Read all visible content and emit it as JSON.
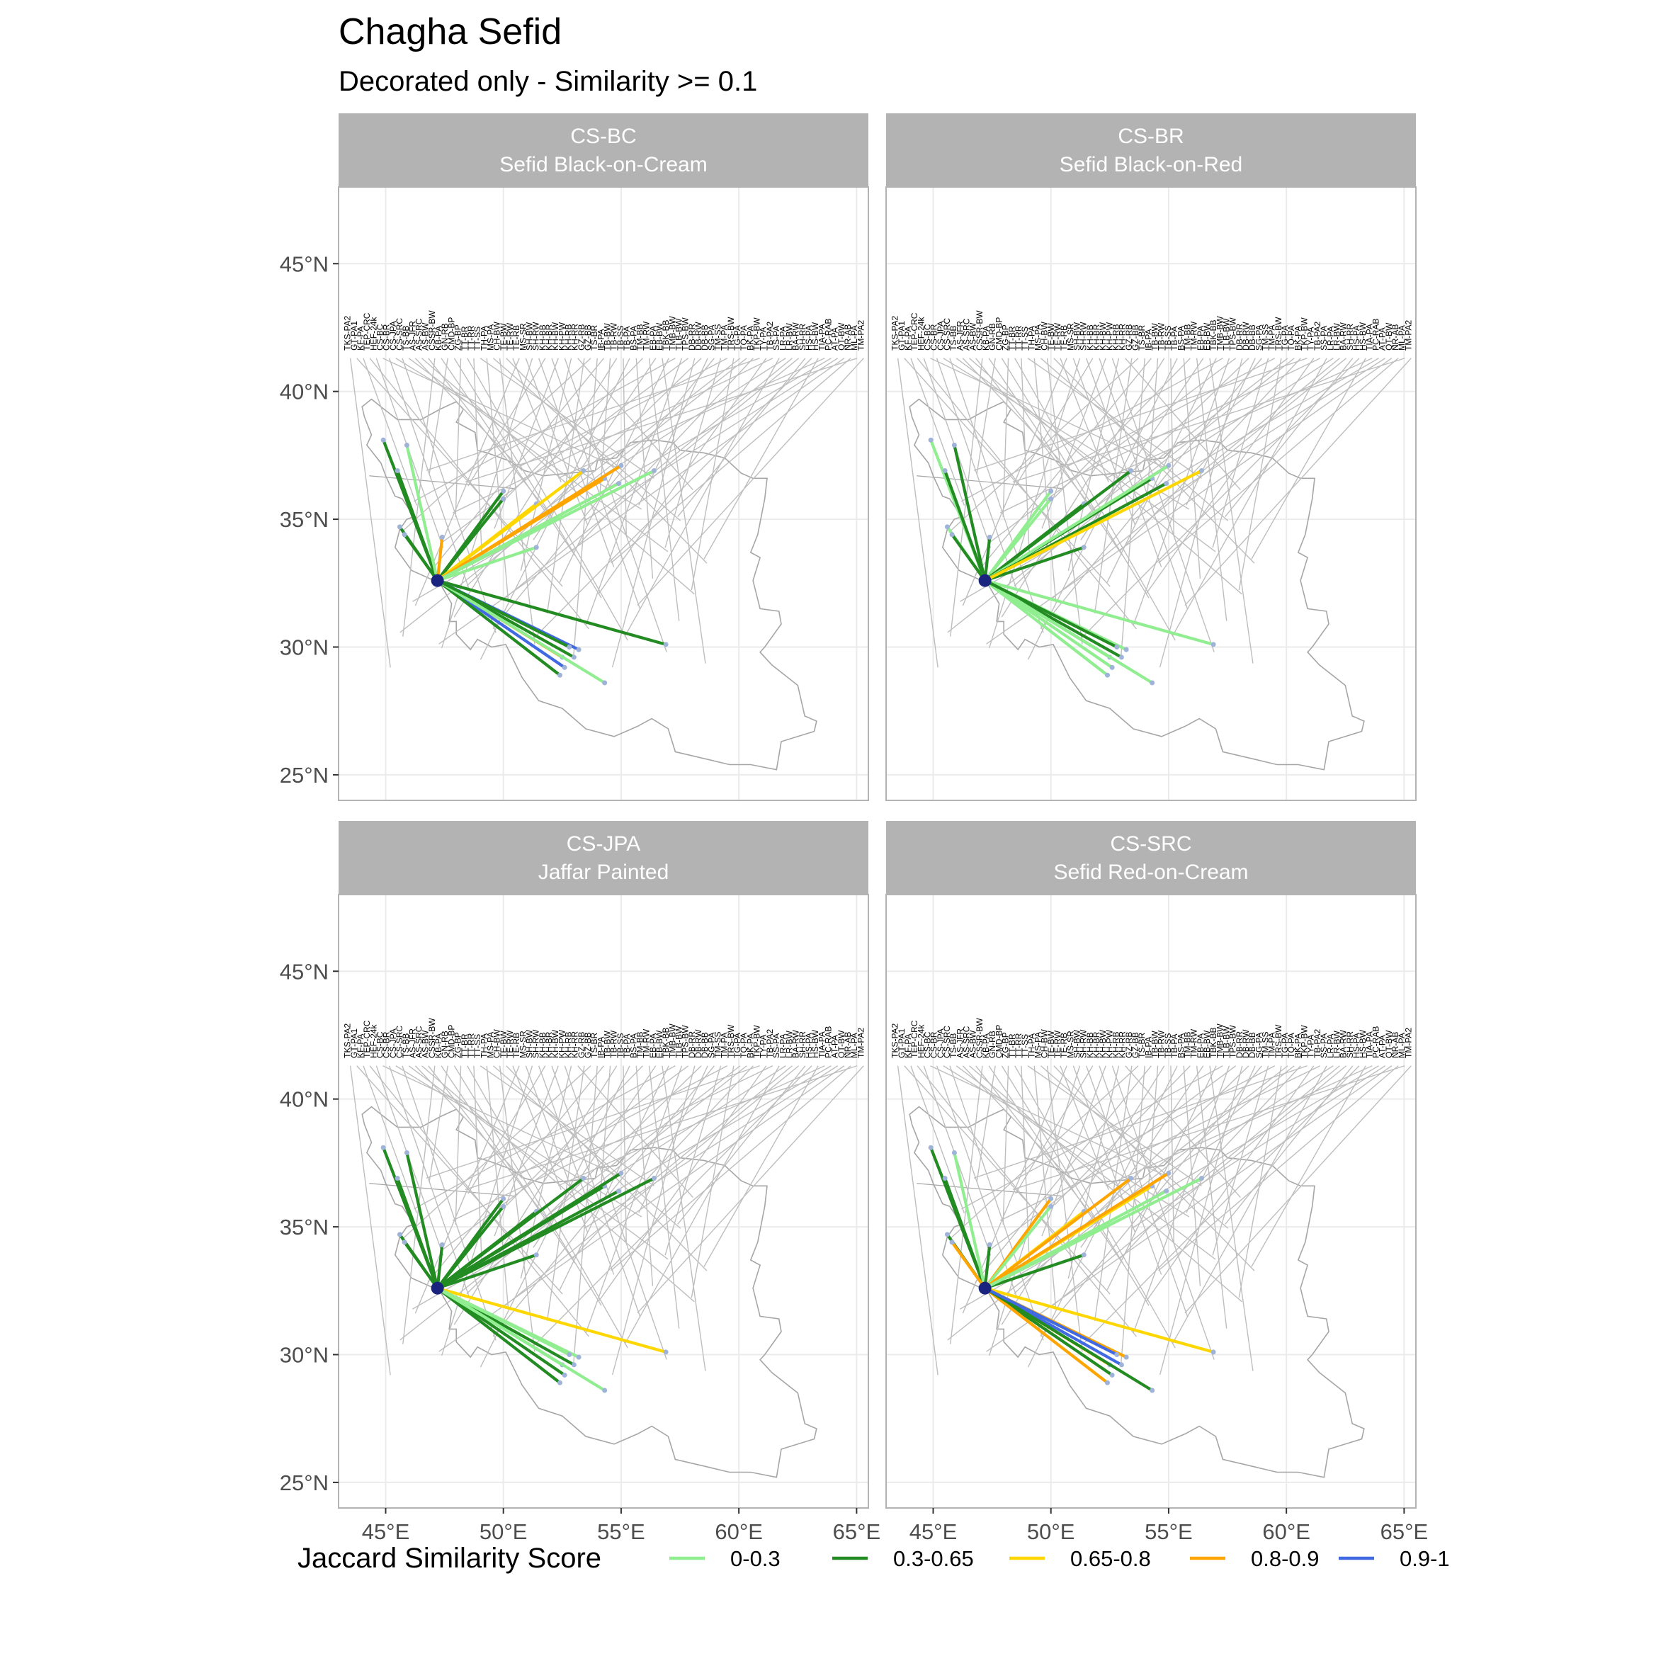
{
  "title": "Chagha Sefid",
  "subtitle": "Decorated only - Similarity >= 0.1",
  "legend": {
    "title": "Jaccard Similarity Score",
    "items": [
      {
        "label": "0-0.3",
        "color": "#90EE90"
      },
      {
        "label": "0.3-0.65",
        "color": "#228B22"
      },
      {
        "label": "0.65-0.8",
        "color": "#FFD700"
      },
      {
        "label": "0.8-0.9",
        "color": "#FFA500"
      },
      {
        "label": "0.9-1",
        "color": "#4169E1"
      }
    ]
  },
  "chart_data": {
    "type": "map",
    "xlim": [
      43,
      65.5
    ],
    "ylim": [
      24,
      48
    ],
    "x_ticks": [
      {
        "value": 45,
        "label": "45°E"
      },
      {
        "value": 50,
        "label": "50°E"
      },
      {
        "value": 55,
        "label": "55°E"
      },
      {
        "value": 60,
        "label": "60°E"
      },
      {
        "value": 65,
        "label": "65°E"
      }
    ],
    "y_ticks": [
      {
        "value": 25,
        "label": "25°N"
      },
      {
        "value": 30,
        "label": "30°N"
      },
      {
        "value": 35,
        "label": "35°N"
      },
      {
        "value": 40,
        "label": "40°N"
      },
      {
        "value": 45,
        "label": "45°N"
      }
    ],
    "origin": {
      "name": "Chagha Sefid",
      "lon": 47.2,
      "lat": 32.6
    },
    "site_labels": [
      "TKS-PA2",
      "GT-PA1",
      "KF-PA",
      "TEP-CRC",
      "HEF-24k",
      "CS-BC",
      "CS-BR",
      "CS-JPA",
      "CS-SRC",
      "TS-BB",
      "AS-JFR",
      "AS-SRC",
      "AS-BW",
      "CSSR-BW",
      "KB-PA",
      "GN-RB",
      "CMD-BP",
      "ZG-BP",
      "TT-BR",
      "TT-RR",
      "TT-SS",
      "TH-PA",
      "MS-PA",
      "CH-BW",
      "TE-BW",
      "TE-RW",
      "TE-RB",
      "MS-SR",
      "SH-BW",
      "SH-RW",
      "KH-BB",
      "KH-BR",
      "KH-BW",
      "KH-PW",
      "KH-RB",
      "KH-RR",
      "GZ-RB",
      "GZ-BB",
      "TS-BR",
      "IB-PA",
      "TB-BW",
      "TB-RW",
      "TB-SS",
      "TB-PA",
      "BS-PA",
      "TM-BB",
      "TM-RW",
      "EB-PA",
      "EB-BW",
      "TBK-BB",
      "TMB-BW",
      "TLB-BW",
      "TPS-BW",
      "DB-RR",
      "DB-RW",
      "DB-BB",
      "SG-PA",
      "TM-SS",
      "TM-PA",
      "TRS-BW",
      "TG-PA",
      "TQ-PA",
      "BK-PA",
      "TKP-BW",
      "TY-PA",
      "TB-PA2",
      "SS-PA",
      "LR-PA",
      "LR-BW",
      "BA-RW",
      "SH-RR",
      "HS-PA",
      "HS-BW",
      "TIA-PA",
      "PC-RAB",
      "AT-PA",
      "QT-BW",
      "NR-AB",
      "ML-PA",
      "TM-PA2"
    ],
    "panels": [
      {
        "code": "CS-BC",
        "name": "Sefid Black-on-Cream",
        "links": [
          {
            "lon": 44.9,
            "lat": 38.1,
            "band": "0.3-0.65"
          },
          {
            "lon": 45.5,
            "lat": 36.9,
            "band": "0.3-0.65"
          },
          {
            "lon": 45.9,
            "lat": 37.9,
            "band": "0-0.3"
          },
          {
            "lon": 45.6,
            "lat": 34.7,
            "band": "0.3-0.65"
          },
          {
            "lon": 45.8,
            "lat": 34.4,
            "band": "0.3-0.65"
          },
          {
            "lon": 47.4,
            "lat": 34.3,
            "band": "0.8-0.9"
          },
          {
            "lon": 50.0,
            "lat": 36.1,
            "band": "0.3-0.65"
          },
          {
            "lon": 50.0,
            "lat": 35.8,
            "band": "0.3-0.65"
          },
          {
            "lon": 51.4,
            "lat": 35.6,
            "band": "0.65-0.8"
          },
          {
            "lon": 51.4,
            "lat": 33.9,
            "band": "0-0.3"
          },
          {
            "lon": 53.4,
            "lat": 36.9,
            "band": "0.65-0.8"
          },
          {
            "lon": 54.3,
            "lat": 36.6,
            "band": "0.8-0.9"
          },
          {
            "lon": 55.0,
            "lat": 37.1,
            "band": "0.8-0.9"
          },
          {
            "lon": 54.9,
            "lat": 36.4,
            "band": "0-0.3"
          },
          {
            "lon": 56.4,
            "lat": 36.9,
            "band": "0-0.3"
          },
          {
            "lon": 56.9,
            "lat": 30.1,
            "band": "0.3-0.65"
          },
          {
            "lon": 53.2,
            "lat": 29.9,
            "band": "0.9-1"
          },
          {
            "lon": 53.0,
            "lat": 29.6,
            "band": "0.3-0.65"
          },
          {
            "lon": 52.5,
            "lat": 29.6,
            "band": "0.8-0.9"
          },
          {
            "lon": 52.6,
            "lat": 29.2,
            "band": "0.9-1"
          },
          {
            "lon": 52.4,
            "lat": 28.9,
            "band": "0.3-0.65"
          },
          {
            "lon": 54.3,
            "lat": 28.6,
            "band": "0-0.3"
          },
          {
            "lon": 52.8,
            "lat": 30.0,
            "band": "0.3-0.65"
          }
        ]
      },
      {
        "code": "CS-BR",
        "name": "Sefid Black-on-Red",
        "links": [
          {
            "lon": 44.9,
            "lat": 38.1,
            "band": "0-0.3"
          },
          {
            "lon": 45.5,
            "lat": 36.9,
            "band": "0.3-0.65"
          },
          {
            "lon": 45.9,
            "lat": 37.9,
            "band": "0.3-0.65"
          },
          {
            "lon": 45.6,
            "lat": 34.7,
            "band": "0-0.3"
          },
          {
            "lon": 45.8,
            "lat": 34.4,
            "band": "0.3-0.65"
          },
          {
            "lon": 47.4,
            "lat": 34.3,
            "band": "0.3-0.65"
          },
          {
            "lon": 50.0,
            "lat": 36.1,
            "band": "0-0.3"
          },
          {
            "lon": 50.0,
            "lat": 35.8,
            "band": "0-0.3"
          },
          {
            "lon": 51.4,
            "lat": 35.6,
            "band": "0.3-0.65"
          },
          {
            "lon": 51.4,
            "lat": 33.9,
            "band": "0.3-0.65"
          },
          {
            "lon": 53.4,
            "lat": 36.9,
            "band": "0.3-0.65"
          },
          {
            "lon": 54.3,
            "lat": 36.6,
            "band": "0.3-0.65"
          },
          {
            "lon": 55.0,
            "lat": 37.1,
            "band": "0-0.3"
          },
          {
            "lon": 54.9,
            "lat": 36.4,
            "band": "0.3-0.65"
          },
          {
            "lon": 56.4,
            "lat": 36.9,
            "band": "0.65-0.8"
          },
          {
            "lon": 56.9,
            "lat": 30.1,
            "band": "0-0.3"
          },
          {
            "lon": 53.2,
            "lat": 29.9,
            "band": "0-0.3"
          },
          {
            "lon": 53.0,
            "lat": 29.6,
            "band": "0.3-0.65"
          },
          {
            "lon": 52.5,
            "lat": 29.6,
            "band": "0-0.3"
          },
          {
            "lon": 52.6,
            "lat": 29.2,
            "band": "0-0.3"
          },
          {
            "lon": 52.4,
            "lat": 28.9,
            "band": "0-0.3"
          },
          {
            "lon": 54.3,
            "lat": 28.6,
            "band": "0-0.3"
          },
          {
            "lon": 52.8,
            "lat": 30.0,
            "band": "0.3-0.65"
          }
        ]
      },
      {
        "code": "CS-JPA",
        "name": "Jaffar Painted",
        "links": [
          {
            "lon": 44.9,
            "lat": 38.1,
            "band": "0.3-0.65"
          },
          {
            "lon": 45.5,
            "lat": 36.9,
            "band": "0.3-0.65"
          },
          {
            "lon": 45.9,
            "lat": 37.9,
            "band": "0.3-0.65"
          },
          {
            "lon": 45.6,
            "lat": 34.7,
            "band": "0.3-0.65"
          },
          {
            "lon": 45.8,
            "lat": 34.4,
            "band": "0.3-0.65"
          },
          {
            "lon": 47.4,
            "lat": 34.3,
            "band": "0.3-0.65"
          },
          {
            "lon": 50.0,
            "lat": 36.1,
            "band": "0.3-0.65"
          },
          {
            "lon": 50.0,
            "lat": 35.8,
            "band": "0.3-0.65"
          },
          {
            "lon": 51.4,
            "lat": 35.6,
            "band": "0.3-0.65"
          },
          {
            "lon": 51.4,
            "lat": 33.9,
            "band": "0.3-0.65"
          },
          {
            "lon": 53.4,
            "lat": 36.9,
            "band": "0.3-0.65"
          },
          {
            "lon": 54.3,
            "lat": 36.6,
            "band": "0.3-0.65"
          },
          {
            "lon": 55.0,
            "lat": 37.1,
            "band": "0.3-0.65"
          },
          {
            "lon": 54.9,
            "lat": 36.4,
            "band": "0.3-0.65"
          },
          {
            "lon": 56.4,
            "lat": 36.9,
            "band": "0.3-0.65"
          },
          {
            "lon": 56.9,
            "lat": 30.1,
            "band": "0.65-0.8"
          },
          {
            "lon": 53.2,
            "lat": 29.9,
            "band": "0-0.3"
          },
          {
            "lon": 53.0,
            "lat": 29.6,
            "band": "0.3-0.65"
          },
          {
            "lon": 52.5,
            "lat": 29.6,
            "band": "0-0.3"
          },
          {
            "lon": 52.6,
            "lat": 29.2,
            "band": "0.3-0.65"
          },
          {
            "lon": 52.4,
            "lat": 28.9,
            "band": "0.3-0.65"
          },
          {
            "lon": 54.3,
            "lat": 28.6,
            "band": "0-0.3"
          },
          {
            "lon": 52.8,
            "lat": 30.0,
            "band": "0-0.3"
          }
        ]
      },
      {
        "code": "CS-SRC",
        "name": "Sefid Red-on-Cream",
        "links": [
          {
            "lon": 44.9,
            "lat": 38.1,
            "band": "0.3-0.65"
          },
          {
            "lon": 45.5,
            "lat": 36.9,
            "band": "0.3-0.65"
          },
          {
            "lon": 45.9,
            "lat": 37.9,
            "band": "0-0.3"
          },
          {
            "lon": 45.6,
            "lat": 34.7,
            "band": "0.3-0.65"
          },
          {
            "lon": 45.8,
            "lat": 34.4,
            "band": "0.8-0.9"
          },
          {
            "lon": 47.4,
            "lat": 34.3,
            "band": "0.3-0.65"
          },
          {
            "lon": 50.0,
            "lat": 36.1,
            "band": "0.8-0.9"
          },
          {
            "lon": 50.0,
            "lat": 35.8,
            "band": "0-0.3"
          },
          {
            "lon": 51.4,
            "lat": 35.6,
            "band": "0.65-0.8"
          },
          {
            "lon": 51.4,
            "lat": 33.9,
            "band": "0.3-0.65"
          },
          {
            "lon": 53.4,
            "lat": 36.9,
            "band": "0.8-0.9"
          },
          {
            "lon": 54.3,
            "lat": 36.6,
            "band": "0.65-0.8"
          },
          {
            "lon": 55.0,
            "lat": 37.1,
            "band": "0.8-0.9"
          },
          {
            "lon": 54.9,
            "lat": 36.4,
            "band": "0-0.3"
          },
          {
            "lon": 56.4,
            "lat": 36.9,
            "band": "0-0.3"
          },
          {
            "lon": 56.9,
            "lat": 30.1,
            "band": "0.65-0.8"
          },
          {
            "lon": 53.2,
            "lat": 29.9,
            "band": "0.8-0.9"
          },
          {
            "lon": 53.0,
            "lat": 29.6,
            "band": "0.9-1"
          },
          {
            "lon": 52.5,
            "lat": 29.6,
            "band": "0.65-0.8"
          },
          {
            "lon": 52.6,
            "lat": 29.2,
            "band": "0.3-0.65"
          },
          {
            "lon": 52.4,
            "lat": 28.9,
            "band": "0.8-0.9"
          },
          {
            "lon": 54.3,
            "lat": 28.6,
            "band": "0.3-0.65"
          },
          {
            "lon": 52.8,
            "lat": 30.0,
            "band": "0.9-1"
          }
        ]
      }
    ]
  }
}
